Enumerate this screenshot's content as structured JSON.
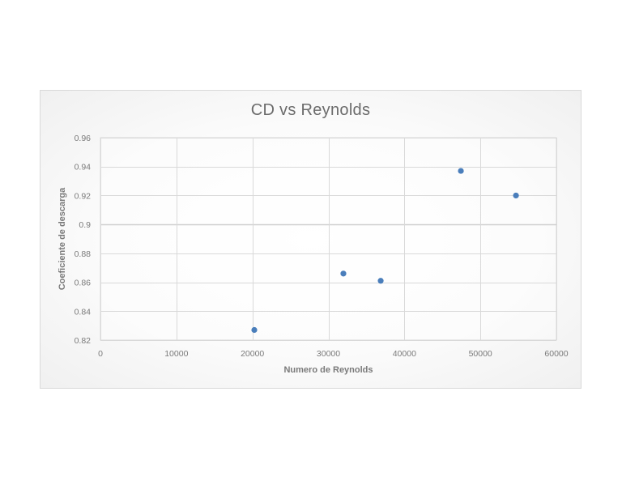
{
  "chart_data": {
    "type": "scatter",
    "title": "CD vs Reynolds",
    "xlabel": "Numero de Reynolds",
    "ylabel": "Coeficiente de descarga",
    "xlim": [
      0,
      60000
    ],
    "ylim": [
      0.82,
      0.96
    ],
    "x_ticks": [
      0,
      10000,
      20000,
      30000,
      40000,
      50000,
      60000
    ],
    "x_tick_labels": [
      "0",
      "10000",
      "20000",
      "30000",
      "40000",
      "50000",
      "60000"
    ],
    "y_ticks": [
      0.82,
      0.84,
      0.86,
      0.88,
      0.9,
      0.92,
      0.94,
      0.96
    ],
    "y_tick_labels": [
      "0.82",
      "0.84",
      "0.86",
      "0.88",
      "0.9",
      "0.92",
      "0.94",
      "0.96"
    ],
    "grid": true,
    "legend": null,
    "series": [
      {
        "name": "CD",
        "color": "#4a7ebb",
        "x": [
          20250,
          31970,
          36880,
          47430,
          54680
        ],
        "y": [
          0.827,
          0.866,
          0.861,
          0.937,
          0.92
        ]
      }
    ]
  },
  "colors": {
    "marker": "#4a7ebb",
    "grid": "#d9d9d9",
    "text": "#7a7a7a",
    "title": "#6b6b6b"
  }
}
